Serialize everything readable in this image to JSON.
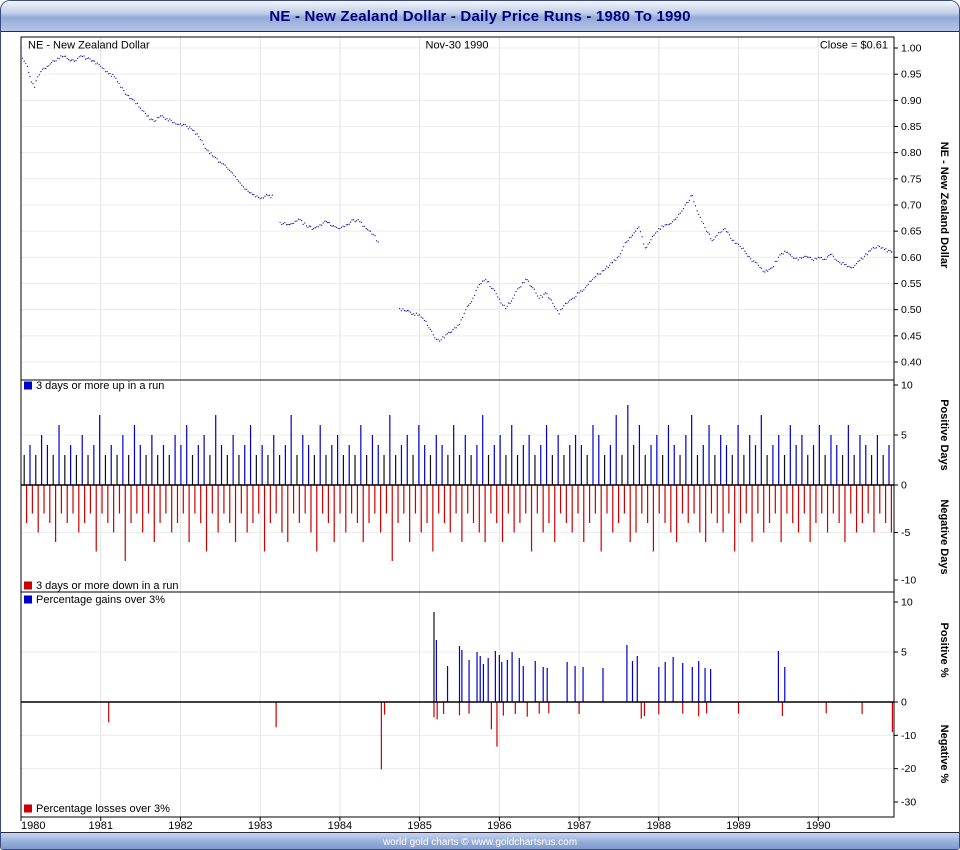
{
  "window": {
    "title": "NE - New Zealand Dollar - Daily Price Runs - 1980 To 1990",
    "footer": "world gold charts © www.goldchartsrus.com"
  },
  "chart_data": {
    "type": "line",
    "title": "NE - New Zealand Dollar - Daily Price Runs - 1980 To 1990",
    "x": {
      "min": 1980,
      "max": 1990.95,
      "ticks": [
        1980,
        1981,
        1982,
        1983,
        1984,
        1985,
        1986,
        1987,
        1988,
        1989,
        1990
      ]
    },
    "price_panel": {
      "header_left": "NE - New Zealand Dollar",
      "header_center": "Nov-30  1990",
      "header_right": "Close = $0.61",
      "axis_label": "NE - New Zealand Dollar",
      "y_ticks": [
        "1.00",
        "0.95",
        "0.90",
        "0.85",
        "0.80",
        "0.75",
        "0.70",
        "0.65",
        "0.60",
        "0.55",
        "0.50",
        "0.45",
        "0.40"
      ],
      "y_min": 0.4,
      "y_max": 1.0,
      "line_color": "#0000A0",
      "points": [
        [
          1980.0,
          0.985
        ],
        [
          1980.04,
          0.975
        ],
        [
          1980.08,
          0.965
        ],
        [
          1980.13,
          0.935
        ],
        [
          1980.17,
          0.925
        ],
        [
          1980.21,
          0.945
        ],
        [
          1980.25,
          0.955
        ],
        [
          1980.33,
          0.965
        ],
        [
          1980.42,
          0.975
        ],
        [
          1980.5,
          0.985
        ],
        [
          1980.58,
          0.98
        ],
        [
          1980.67,
          0.975
        ],
        [
          1980.75,
          0.985
        ],
        [
          1980.83,
          0.98
        ],
        [
          1980.92,
          0.975
        ],
        [
          1981.0,
          0.965
        ],
        [
          1981.08,
          0.955
        ],
        [
          1981.17,
          0.945
        ],
        [
          1981.25,
          0.925
        ],
        [
          1981.33,
          0.91
        ],
        [
          1981.42,
          0.9
        ],
        [
          1981.5,
          0.885
        ],
        [
          1981.58,
          0.87
        ],
        [
          1981.67,
          0.86
        ],
        [
          1981.75,
          0.87
        ],
        [
          1981.83,
          0.865
        ],
        [
          1981.92,
          0.858
        ],
        [
          1982.0,
          0.855
        ],
        [
          1982.08,
          0.85
        ],
        [
          1982.17,
          0.842
        ],
        [
          1982.25,
          0.825
        ],
        [
          1982.33,
          0.805
        ],
        [
          1982.42,
          0.792
        ],
        [
          1982.5,
          0.782
        ],
        [
          1982.58,
          0.772
        ],
        [
          1982.67,
          0.757
        ],
        [
          1982.75,
          0.742
        ],
        [
          1982.83,
          0.73
        ],
        [
          1982.92,
          0.72
        ],
        [
          1983.0,
          0.712
        ],
        [
          1983.08,
          0.72
        ],
        [
          1983.17,
          0.715
        ],
        [
          1983.21,
          null
        ],
        [
          1983.25,
          0.667
        ],
        [
          1983.33,
          0.662
        ],
        [
          1983.42,
          0.665
        ],
        [
          1983.5,
          0.672
        ],
        [
          1983.58,
          0.66
        ],
        [
          1983.67,
          0.655
        ],
        [
          1983.75,
          0.662
        ],
        [
          1983.83,
          0.668
        ],
        [
          1983.92,
          0.66
        ],
        [
          1984.0,
          0.655
        ],
        [
          1984.08,
          0.662
        ],
        [
          1984.17,
          0.672
        ],
        [
          1984.25,
          0.668
        ],
        [
          1984.33,
          0.655
        ],
        [
          1984.42,
          0.643
        ],
        [
          1984.5,
          0.625
        ],
        [
          1984.55,
          null
        ],
        [
          1984.75,
          0.502
        ],
        [
          1984.83,
          0.497
        ],
        [
          1984.92,
          0.492
        ],
        [
          1985.0,
          0.49
        ],
        [
          1985.08,
          0.478
        ],
        [
          1985.17,
          0.452
        ],
        [
          1985.25,
          0.44
        ],
        [
          1985.33,
          0.452
        ],
        [
          1985.42,
          0.462
        ],
        [
          1985.5,
          0.472
        ],
        [
          1985.58,
          0.5
        ],
        [
          1985.67,
          0.522
        ],
        [
          1985.75,
          0.548
        ],
        [
          1985.83,
          0.558
        ],
        [
          1985.92,
          0.54
        ],
        [
          1986.0,
          0.52
        ],
        [
          1986.08,
          0.502
        ],
        [
          1986.17,
          0.522
        ],
        [
          1986.25,
          0.542
        ],
        [
          1986.33,
          0.558
        ],
        [
          1986.42,
          0.542
        ],
        [
          1986.5,
          0.522
        ],
        [
          1986.58,
          0.532
        ],
        [
          1986.67,
          0.512
        ],
        [
          1986.75,
          0.492
        ],
        [
          1986.83,
          0.512
        ],
        [
          1986.92,
          0.522
        ],
        [
          1987.0,
          0.532
        ],
        [
          1987.08,
          0.542
        ],
        [
          1987.17,
          0.558
        ],
        [
          1987.25,
          0.568
        ],
        [
          1987.33,
          0.578
        ],
        [
          1987.42,
          0.59
        ],
        [
          1987.5,
          0.602
        ],
        [
          1987.58,
          0.628
        ],
        [
          1987.67,
          0.642
        ],
        [
          1987.75,
          0.658
        ],
        [
          1987.83,
          0.618
        ],
        [
          1987.92,
          0.64
        ],
        [
          1988.0,
          0.655
        ],
        [
          1988.08,
          0.662
        ],
        [
          1988.17,
          0.668
        ],
        [
          1988.25,
          0.682
        ],
        [
          1988.33,
          0.7
        ],
        [
          1988.42,
          0.718
        ],
        [
          1988.5,
          0.682
        ],
        [
          1988.58,
          0.657
        ],
        [
          1988.67,
          0.632
        ],
        [
          1988.75,
          0.647
        ],
        [
          1988.83,
          0.655
        ],
        [
          1988.92,
          0.632
        ],
        [
          1989.0,
          0.625
        ],
        [
          1989.08,
          0.612
        ],
        [
          1989.17,
          0.592
        ],
        [
          1989.25,
          0.585
        ],
        [
          1989.33,
          0.572
        ],
        [
          1989.42,
          0.58
        ],
        [
          1989.5,
          0.6
        ],
        [
          1989.58,
          0.612
        ],
        [
          1989.67,
          0.602
        ],
        [
          1989.75,
          0.595
        ],
        [
          1989.83,
          0.602
        ],
        [
          1989.92,
          0.596
        ],
        [
          1990.0,
          0.6
        ],
        [
          1990.08,
          0.596
        ],
        [
          1990.17,
          0.606
        ],
        [
          1990.25,
          0.592
        ],
        [
          1990.33,
          0.586
        ],
        [
          1990.42,
          0.58
        ],
        [
          1990.5,
          0.592
        ],
        [
          1990.58,
          0.602
        ],
        [
          1990.67,
          0.616
        ],
        [
          1990.75,
          0.622
        ],
        [
          1990.83,
          0.615
        ],
        [
          1990.92,
          0.61
        ]
      ]
    },
    "runs_panel": {
      "legend_up": "3 days or more up in a run",
      "legend_down": "3 days or more down in a run",
      "axis_label_pos": "Positive Days",
      "axis_label_neg": "Negative Days",
      "y_ticks": [
        10,
        5,
        0,
        -5,
        -10
      ],
      "y_range": [
        -10,
        10
      ],
      "up": {
        "color": "#0000CC",
        "alt_color": "#111111",
        "x0": 1980.04,
        "dx": 0.0728,
        "values": [
          3,
          4,
          3,
          5,
          4,
          3,
          6,
          3,
          4,
          3,
          5,
          3,
          4,
          7,
          3,
          4,
          3,
          5,
          3,
          6,
          4,
          3,
          5,
          3,
          4,
          3,
          5,
          4,
          6,
          3,
          4,
          5,
          3,
          7,
          4,
          3,
          5,
          3,
          4,
          6,
          3,
          4,
          3,
          5,
          3,
          4,
          7,
          3,
          5,
          4,
          3,
          6,
          3,
          4,
          5,
          3,
          4,
          3,
          6,
          3,
          5,
          4,
          3,
          7,
          3,
          4,
          5,
          3,
          6,
          4,
          3,
          5,
          4,
          3,
          6,
          3,
          5,
          3,
          4,
          7,
          3,
          4,
          5,
          3,
          6,
          3,
          4,
          5,
          3,
          4,
          6,
          3,
          5,
          3,
          4,
          5,
          4,
          3,
          6,
          5,
          3,
          4,
          7,
          3,
          8,
          4,
          6,
          3,
          4,
          5,
          3,
          6,
          4,
          3,
          5,
          7,
          3,
          4,
          6,
          3,
          5,
          4,
          3,
          6,
          3,
          5,
          4,
          7,
          3,
          4,
          5,
          3,
          6,
          4,
          5,
          3,
          4,
          6,
          3,
          5,
          4,
          3,
          6,
          3,
          5,
          4,
          3,
          5,
          3,
          4
        ]
      },
      "down": {
        "color": "#CC0000",
        "x0": 1980.07,
        "dx": 0.0728,
        "values": [
          -4,
          -3,
          -5,
          -3,
          -4,
          -6,
          -3,
          -4,
          -3,
          -5,
          -4,
          -3,
          -7,
          -3,
          -4,
          -5,
          -3,
          -8,
          -4,
          -3,
          -5,
          -3,
          -6,
          -4,
          -3,
          -5,
          -4,
          -3,
          -6,
          -3,
          -4,
          -7,
          -3,
          -5,
          -3,
          -4,
          -6,
          -3,
          -5,
          -4,
          -3,
          -7,
          -4,
          -3,
          -5,
          -6,
          -3,
          -4,
          -3,
          -5,
          -7,
          -3,
          -4,
          -6,
          -3,
          -5,
          -3,
          -4,
          -6,
          -4,
          -3,
          -5,
          -3,
          -8,
          -4,
          -3,
          -6,
          -3,
          -5,
          -4,
          -7,
          -3,
          -4,
          -5,
          -3,
          -6,
          -3,
          -4,
          -5,
          -6,
          -3,
          -4,
          -6,
          -3,
          -5,
          -4,
          -3,
          -7,
          -3,
          -5,
          -4,
          -6,
          -3,
          -4,
          -5,
          -3,
          -6,
          -4,
          -3,
          -7,
          -3,
          -5,
          -4,
          -3,
          -6,
          -5,
          -3,
          -4,
          -7,
          -3,
          -4,
          -5,
          -6,
          -3,
          -4,
          -3,
          -5,
          -6,
          -3,
          -4,
          -5,
          -3,
          -7,
          -4,
          -3,
          -6,
          -3,
          -5,
          -4,
          -3,
          -6,
          -3,
          -4,
          -5,
          -3,
          -6,
          -4,
          -3,
          -5,
          -3,
          -4,
          -6,
          -3,
          -5,
          -4,
          -3,
          -5,
          -3,
          -4,
          -5
        ]
      }
    },
    "percent_panel": {
      "legend_up": "Percentage gains over 3%",
      "legend_down": "Percentage losses over 3%",
      "axis_label_pos": "Positive %",
      "axis_label_neg": "Negative %",
      "y_ticks": [
        10,
        5,
        0,
        -10,
        -20,
        -30
      ],
      "y_range": [
        -30,
        10
      ],
      "gains": {
        "color": "#0000CC",
        "points": [
          [
            1985.18,
            9.0
          ],
          [
            1985.21,
            6.2
          ],
          [
            1985.35,
            3.6
          ],
          [
            1985.5,
            5.6
          ],
          [
            1985.53,
            5.2
          ],
          [
            1985.62,
            4.2
          ],
          [
            1985.72,
            5.0
          ],
          [
            1985.76,
            4.6
          ],
          [
            1985.8,
            3.8
          ],
          [
            1985.86,
            4.4
          ],
          [
            1985.95,
            5.1
          ],
          [
            1986.0,
            4.7
          ],
          [
            1986.03,
            4.0
          ],
          [
            1986.1,
            4.2
          ],
          [
            1986.16,
            5.0
          ],
          [
            1986.25,
            4.4
          ],
          [
            1986.3,
            3.6
          ],
          [
            1986.45,
            4.1
          ],
          [
            1986.55,
            3.5
          ],
          [
            1986.6,
            3.4
          ],
          [
            1986.85,
            4.0
          ],
          [
            1986.95,
            3.6
          ],
          [
            1987.05,
            3.5
          ],
          [
            1987.3,
            3.4
          ],
          [
            1987.6,
            5.7
          ],
          [
            1987.67,
            4.1
          ],
          [
            1987.73,
            4.6
          ],
          [
            1988.0,
            3.5
          ],
          [
            1988.08,
            4.0
          ],
          [
            1988.18,
            4.5
          ],
          [
            1988.3,
            3.9
          ],
          [
            1988.42,
            3.5
          ],
          [
            1988.5,
            4.1
          ],
          [
            1988.58,
            3.4
          ],
          [
            1988.65,
            3.3
          ],
          [
            1989.5,
            5.1
          ],
          [
            1989.58,
            3.5
          ]
        ]
      },
      "losses": {
        "color": "#CC0000",
        "points": [
          [
            1981.1,
            -6.1
          ],
          [
            1983.2,
            -7.6
          ],
          [
            1984.52,
            -20.2
          ],
          [
            1984.56,
            -3.8
          ],
          [
            1985.18,
            -4.6
          ],
          [
            1985.22,
            -5.2
          ],
          [
            1985.3,
            -3.6
          ],
          [
            1985.5,
            -4.0
          ],
          [
            1985.62,
            -3.5
          ],
          [
            1985.9,
            -8.2
          ],
          [
            1985.97,
            -13.4
          ],
          [
            1986.05,
            -4.1
          ],
          [
            1986.2,
            -3.6
          ],
          [
            1986.35,
            -4.4
          ],
          [
            1986.5,
            -3.5
          ],
          [
            1986.62,
            -3.4
          ],
          [
            1987.0,
            -3.6
          ],
          [
            1987.78,
            -5.0
          ],
          [
            1987.82,
            -4.2
          ],
          [
            1988.0,
            -3.7
          ],
          [
            1988.3,
            -3.5
          ],
          [
            1988.5,
            -4.3
          ],
          [
            1988.6,
            -3.4
          ],
          [
            1989.0,
            -3.5
          ],
          [
            1989.55,
            -4.2
          ],
          [
            1990.1,
            -3.4
          ],
          [
            1990.55,
            -3.6
          ],
          [
            1990.93,
            -9.0
          ]
        ]
      }
    }
  }
}
